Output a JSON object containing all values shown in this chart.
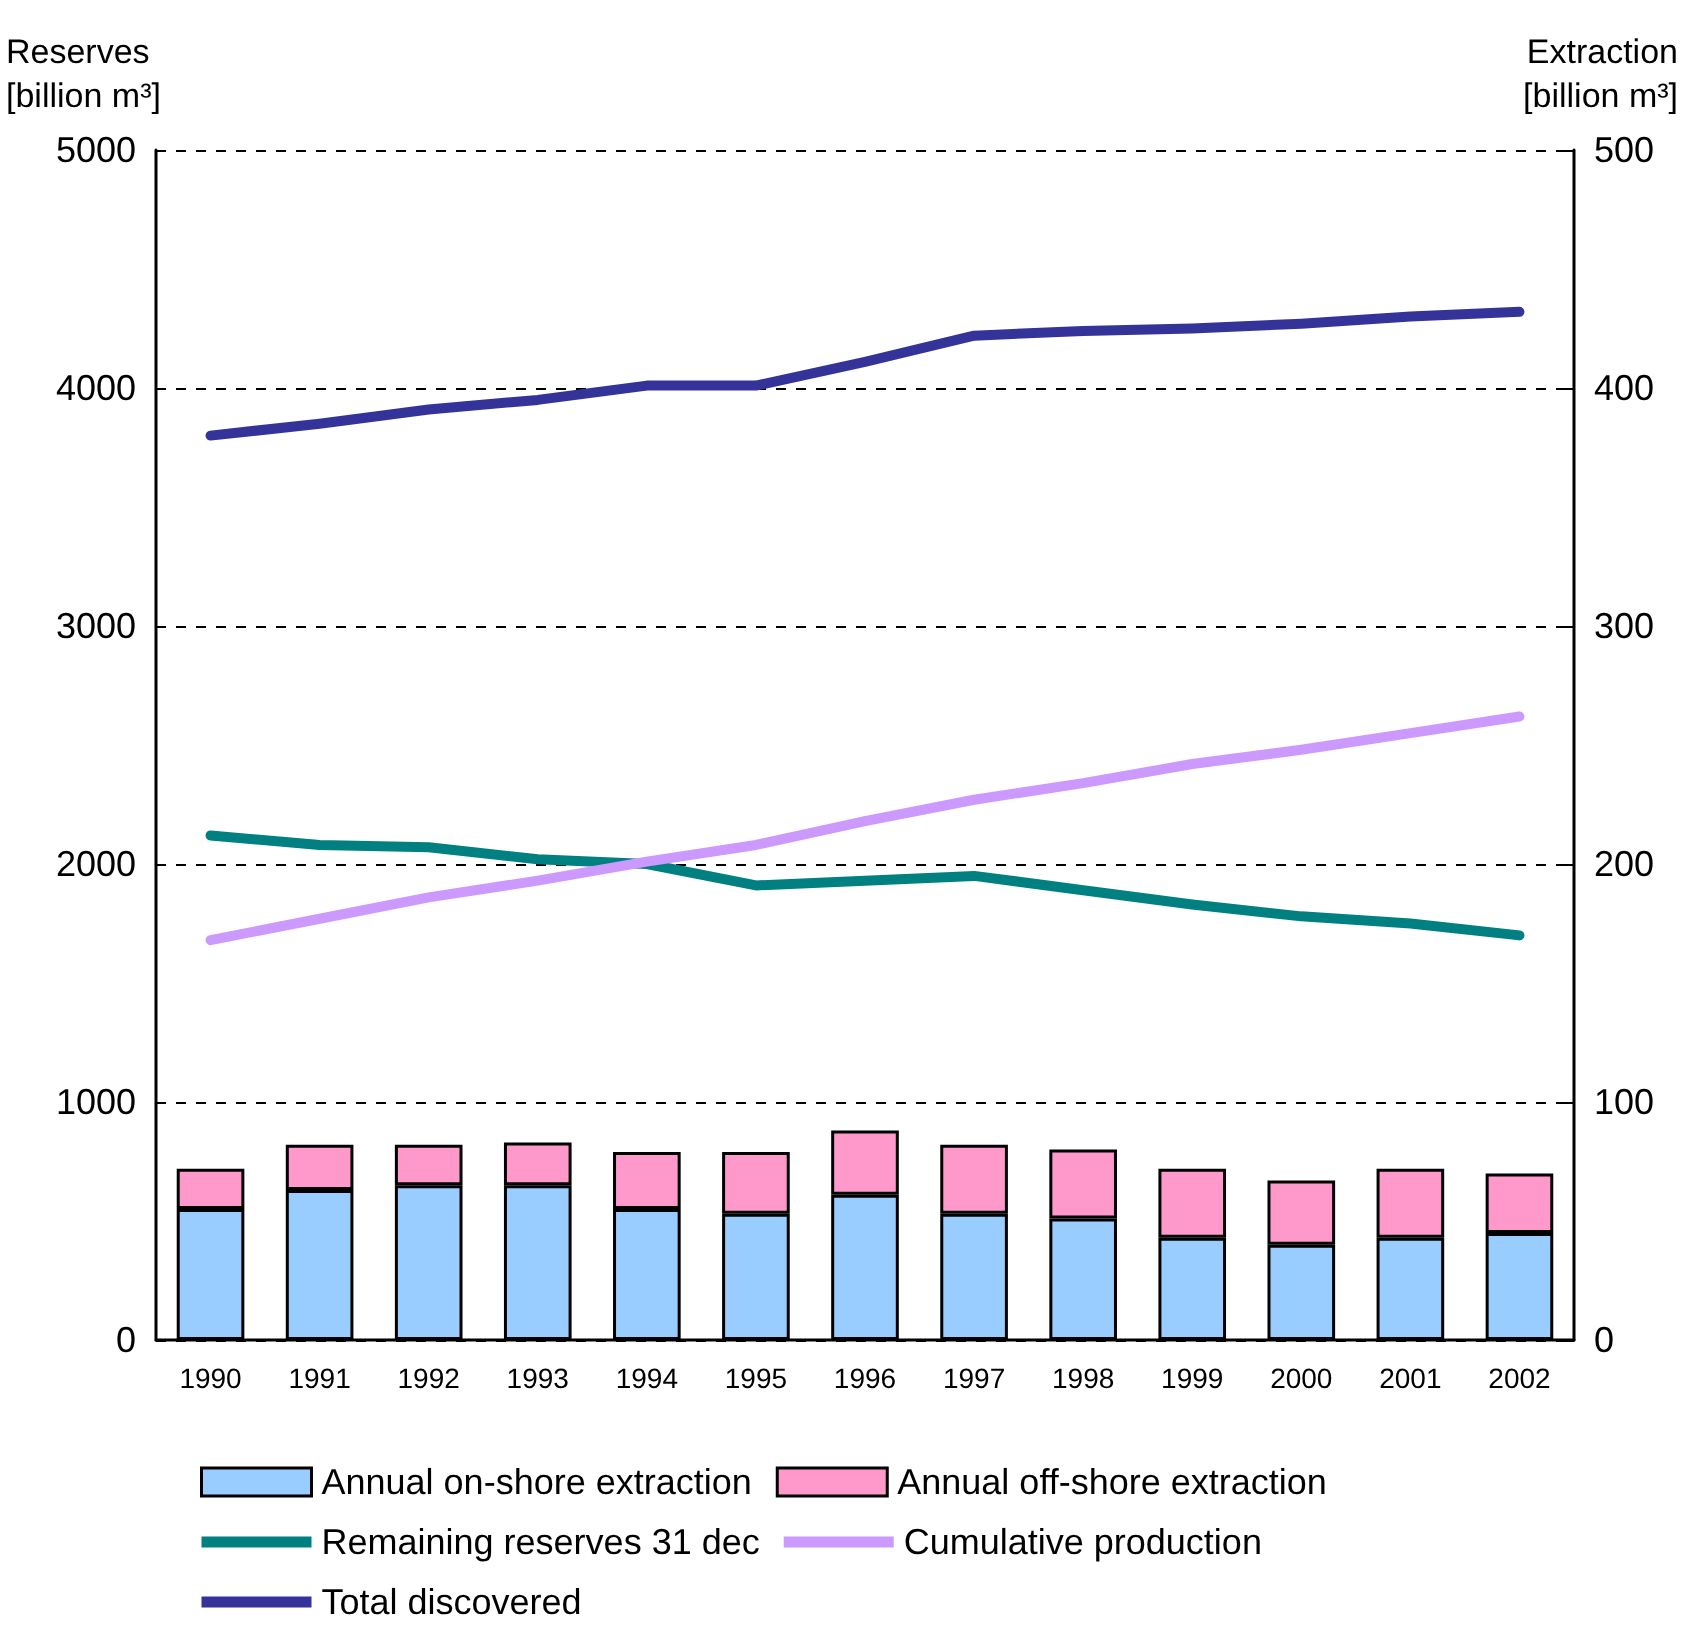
{
  "chart_data": {
    "type": "bar",
    "stacked": true,
    "ylabel": "Reserves [billion m³]",
    "y2label": "Extraction [billion m³]",
    "categories": [
      "1990",
      "1991",
      "1992",
      "1993",
      "1994",
      "1995",
      "1996",
      "1997",
      "1998",
      "1999",
      "2000",
      "2001",
      "2002"
    ],
    "series": [
      {
        "name": "Annual on-shore extraction",
        "axis": "y2",
        "color": "#99ccff",
        "values": [
          55,
          63,
          65,
          65,
          55,
          53,
          61,
          53,
          51,
          43,
          40,
          43,
          45
        ]
      },
      {
        "name": "Annual off-shore extraction",
        "axis": "y2",
        "color": "#ff99cc",
        "values": [
          17,
          19,
          17,
          18,
          24,
          26,
          27,
          29,
          29,
          29,
          27,
          29,
          25
        ]
      },
      {
        "name": "Remaining reserves 31 dec",
        "type": "line",
        "color": "#008080",
        "values": [
          2120,
          2080,
          2070,
          2020,
          2000,
          1910,
          1930,
          1950,
          1890,
          1830,
          1780,
          1750,
          1700
        ]
      },
      {
        "name": "Cumulative production",
        "type": "line",
        "color": "#cc99ff",
        "values": [
          1680,
          1770,
          1860,
          1930,
          2010,
          2080,
          2180,
          2270,
          2340,
          2420,
          2480,
          2550,
          2620
        ]
      },
      {
        "name": "Total discovered",
        "type": "line",
        "color": "#333399",
        "values": [
          3800,
          3850,
          3910,
          3950,
          4010,
          4010,
          4110,
          4220,
          4240,
          4250,
          4270,
          4300,
          4320
        ]
      }
    ],
    "ylim": [
      0,
      5000
    ],
    "yticks": [
      0,
      1000,
      2000,
      3000,
      4000,
      5000
    ],
    "y2lim": [
      0,
      500
    ],
    "y2ticks": [
      0,
      100,
      200,
      300,
      400,
      500
    ],
    "grid": "y",
    "legend": "bottom",
    "marker": "none",
    "line_style": "solid"
  }
}
